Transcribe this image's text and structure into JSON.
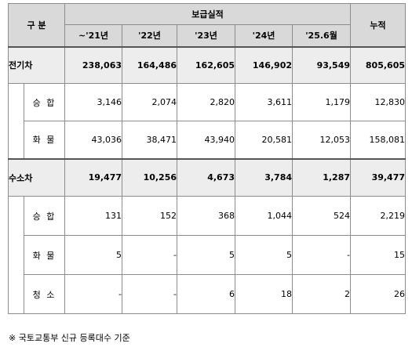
{
  "header": {
    "category": "구 분",
    "group": "보급실적",
    "cumulative": "누적",
    "years": [
      "~'21년",
      "'22년",
      "'23년",
      "'24년",
      "'25.6월"
    ]
  },
  "rows": [
    {
      "label": "전기차",
      "values": [
        "238,063",
        "164,486",
        "162,605",
        "146,902",
        "93,549",
        "805,605"
      ]
    },
    {
      "label": "승 합",
      "values": [
        "3,146",
        "2,074",
        "2,820",
        "3,611",
        "1,179",
        "12,830"
      ]
    },
    {
      "label": "화 물",
      "values": [
        "43,036",
        "38,471",
        "43,940",
        "20,581",
        "12,053",
        "158,081"
      ]
    },
    {
      "label": "수소차",
      "values": [
        "19,477",
        "10,256",
        "4,673",
        "3,784",
        "1,287",
        "39,477"
      ]
    },
    {
      "label": "승 합",
      "values": [
        "131",
        "152",
        "368",
        "1,044",
        "524",
        "2,219"
      ]
    },
    {
      "label": "화 물",
      "values": [
        "5",
        "-",
        "5",
        "5",
        "-",
        "15"
      ]
    },
    {
      "label": "청 소",
      "values": [
        "-",
        "-",
        "6",
        "18",
        "2",
        "26"
      ]
    }
  ],
  "footnote": "※ 국토교통부 신규 등록대수 기준"
}
